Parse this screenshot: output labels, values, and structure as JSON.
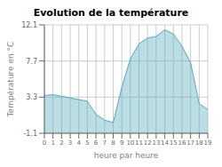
{
  "chart_data": {
    "type": "area",
    "title": "Evolution de la température",
    "xlabel": "heure par heure",
    "ylabel": "Température en °C",
    "x": [
      0,
      1,
      2,
      3,
      4,
      5,
      6,
      7,
      8,
      9,
      10,
      11,
      12,
      13,
      14,
      15,
      16,
      17,
      18,
      19
    ],
    "values": [
      3.5,
      3.6,
      3.4,
      3.2,
      3.0,
      2.8,
      1.2,
      0.5,
      0.2,
      4.5,
      8.0,
      9.8,
      10.5,
      10.7,
      11.5,
      11.0,
      9.5,
      7.5,
      2.5,
      1.8
    ],
    "color": "#55aabb",
    "xlim": [
      0,
      19
    ],
    "ylim": [
      -1.1,
      12.1
    ],
    "xticks": [
      0,
      1,
      2,
      3,
      4,
      5,
      6,
      7,
      8,
      9,
      10,
      11,
      12,
      13,
      14,
      15,
      16,
      17,
      18,
      19
    ],
    "yticks": [
      -1.1,
      3.3,
      7.7,
      12.1
    ],
    "grid": true
  }
}
